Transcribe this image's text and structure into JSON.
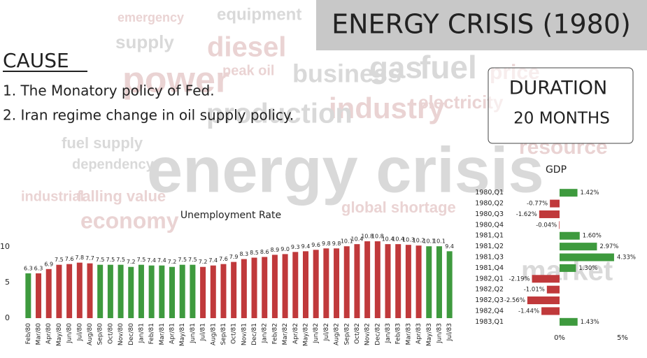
{
  "header": {
    "title": "ENERGY CRISIS (1980)"
  },
  "cause": {
    "heading": "CAUSE",
    "items": [
      "1. The Monatory policy of Fed.",
      "2. Iran regime change in oil supply policy."
    ]
  },
  "duration": {
    "label": "DURATION",
    "value": "20 MONTHS"
  },
  "background_words": [
    "energy crisis",
    "power",
    "business",
    "gas",
    "fuel",
    "industry",
    "diesel",
    "equipment",
    "emergency",
    "supply",
    "peak oil",
    "production",
    "electricity",
    "resource",
    "economy",
    "global shortage",
    "market",
    "fuel supply",
    "dependency",
    "falling value",
    "industrial",
    "price"
  ],
  "chart_data": [
    {
      "type": "bar",
      "title": "Unemployment Rate",
      "categories": [
        "Feb/80",
        "Mar/80",
        "Apr/80",
        "May/80",
        "Jun/80",
        "Jul/80",
        "Aug/80",
        "Sep/80",
        "Oct/80",
        "Nov/80",
        "Dec/80",
        "Jan/81",
        "Feb/81",
        "Mar/81",
        "Apr/81",
        "May/81",
        "Jun/81",
        "Jul/81",
        "Aug/81",
        "Sep/81",
        "Oct/81",
        "Nov/81",
        "Dec/81",
        "Jan/82",
        "Feb/82",
        "Mar/82",
        "Apr/82",
        "May/82",
        "Jun/82",
        "Jul/82",
        "Aug/82",
        "Sep/82",
        "Oct/82",
        "Nov/82",
        "Dec/82",
        "Jan/83",
        "Feb/83",
        "Mar/83",
        "Apr/83",
        "May/83",
        "Jun/83",
        "Jul/83"
      ],
      "values": [
        6.3,
        6.3,
        6.9,
        7.5,
        7.6,
        7.8,
        7.7,
        7.5,
        7.5,
        7.5,
        7.2,
        7.5,
        7.4,
        7.4,
        7.2,
        7.5,
        7.5,
        7.2,
        7.4,
        7.6,
        7.9,
        8.3,
        8.5,
        8.6,
        8.9,
        9,
        9.3,
        9.4,
        9.6,
        9.8,
        9.8,
        10.1,
        10.4,
        10.8,
        10.8,
        10.4,
        10.4,
        10.3,
        10.2,
        10.1,
        10.1,
        9.4
      ],
      "value_labels": [
        "6.3",
        "6.3",
        "6.9",
        "7.5",
        "7.6",
        "7.8",
        "7.7",
        "7.5",
        "7.5",
        "7.5",
        "7.2",
        "7.5",
        "7.4",
        "7.4",
        "7.2",
        "7.5",
        "7.5",
        "7.2",
        "7.4",
        "7.6",
        "7.9",
        "8.3",
        "8.5",
        "8.6",
        "8.9",
        "9.0",
        "9.3",
        "9.4",
        "9.6",
        "9.8",
        "9.8",
        "10.1",
        "10.4",
        "10.8",
        "10.8",
        "10.4",
        "10.4",
        "10.3",
        "10.2",
        "10.1",
        "10.1",
        "9.4"
      ],
      "colors": [
        "#3e9a3e",
        "#c0393b",
        "#c0393b",
        "#c0393b",
        "#c0393b",
        "#c0393b",
        "#c0393b",
        "#3e9a3e",
        "#3e9a3e",
        "#3e9a3e",
        "#3e9a3e",
        "#3e9a3e",
        "#3e9a3e",
        "#3e9a3e",
        "#3e9a3e",
        "#3e9a3e",
        "#3e9a3e",
        "#c0393b",
        "#c0393b",
        "#c0393b",
        "#c0393b",
        "#c0393b",
        "#c0393b",
        "#c0393b",
        "#c0393b",
        "#c0393b",
        "#c0393b",
        "#c0393b",
        "#c0393b",
        "#c0393b",
        "#c0393b",
        "#c0393b",
        "#c0393b",
        "#c0393b",
        "#c0393b",
        "#c0393b",
        "#c0393b",
        "#c0393b",
        "#c0393b",
        "#3e9a3e",
        "#3e9a3e",
        "#3e9a3e"
      ],
      "ylim": [
        0,
        11.3
      ],
      "yticks": [
        0,
        5,
        10
      ]
    },
    {
      "type": "bar",
      "orientation": "horizontal",
      "title": "GDP",
      "categories": [
        "1980,Q1",
        "1980,Q2",
        "1980,Q3",
        "1980,Q4",
        "1981,Q1",
        "1981,Q2",
        "1981,Q3",
        "1981,Q4",
        "1982,Q1",
        "1982,Q2",
        "1982,Q3",
        "1982,Q4",
        "1983,Q1"
      ],
      "values": [
        1.42,
        -0.77,
        -1.62,
        -0.04,
        1.6,
        2.97,
        4.33,
        1.3,
        -2.19,
        -1.01,
        -2.56,
        -1.44,
        1.43
      ],
      "value_labels": [
        "1.42%",
        "-0.77%",
        "-1.62%",
        "-0.04%",
        "1.60%",
        "2.97%",
        "4.33%",
        "1.30%",
        "-2.19%",
        "-1.01%",
        "-2.56%",
        "-1.44%",
        "1.43%"
      ],
      "positive_color": "#3e9a3e",
      "negative_color": "#c0393b",
      "xlim": [
        -3,
        6
      ],
      "xticks": [
        {
          "value": 0,
          "label": "0%"
        },
        {
          "value": 5,
          "label": "5%"
        }
      ]
    }
  ]
}
